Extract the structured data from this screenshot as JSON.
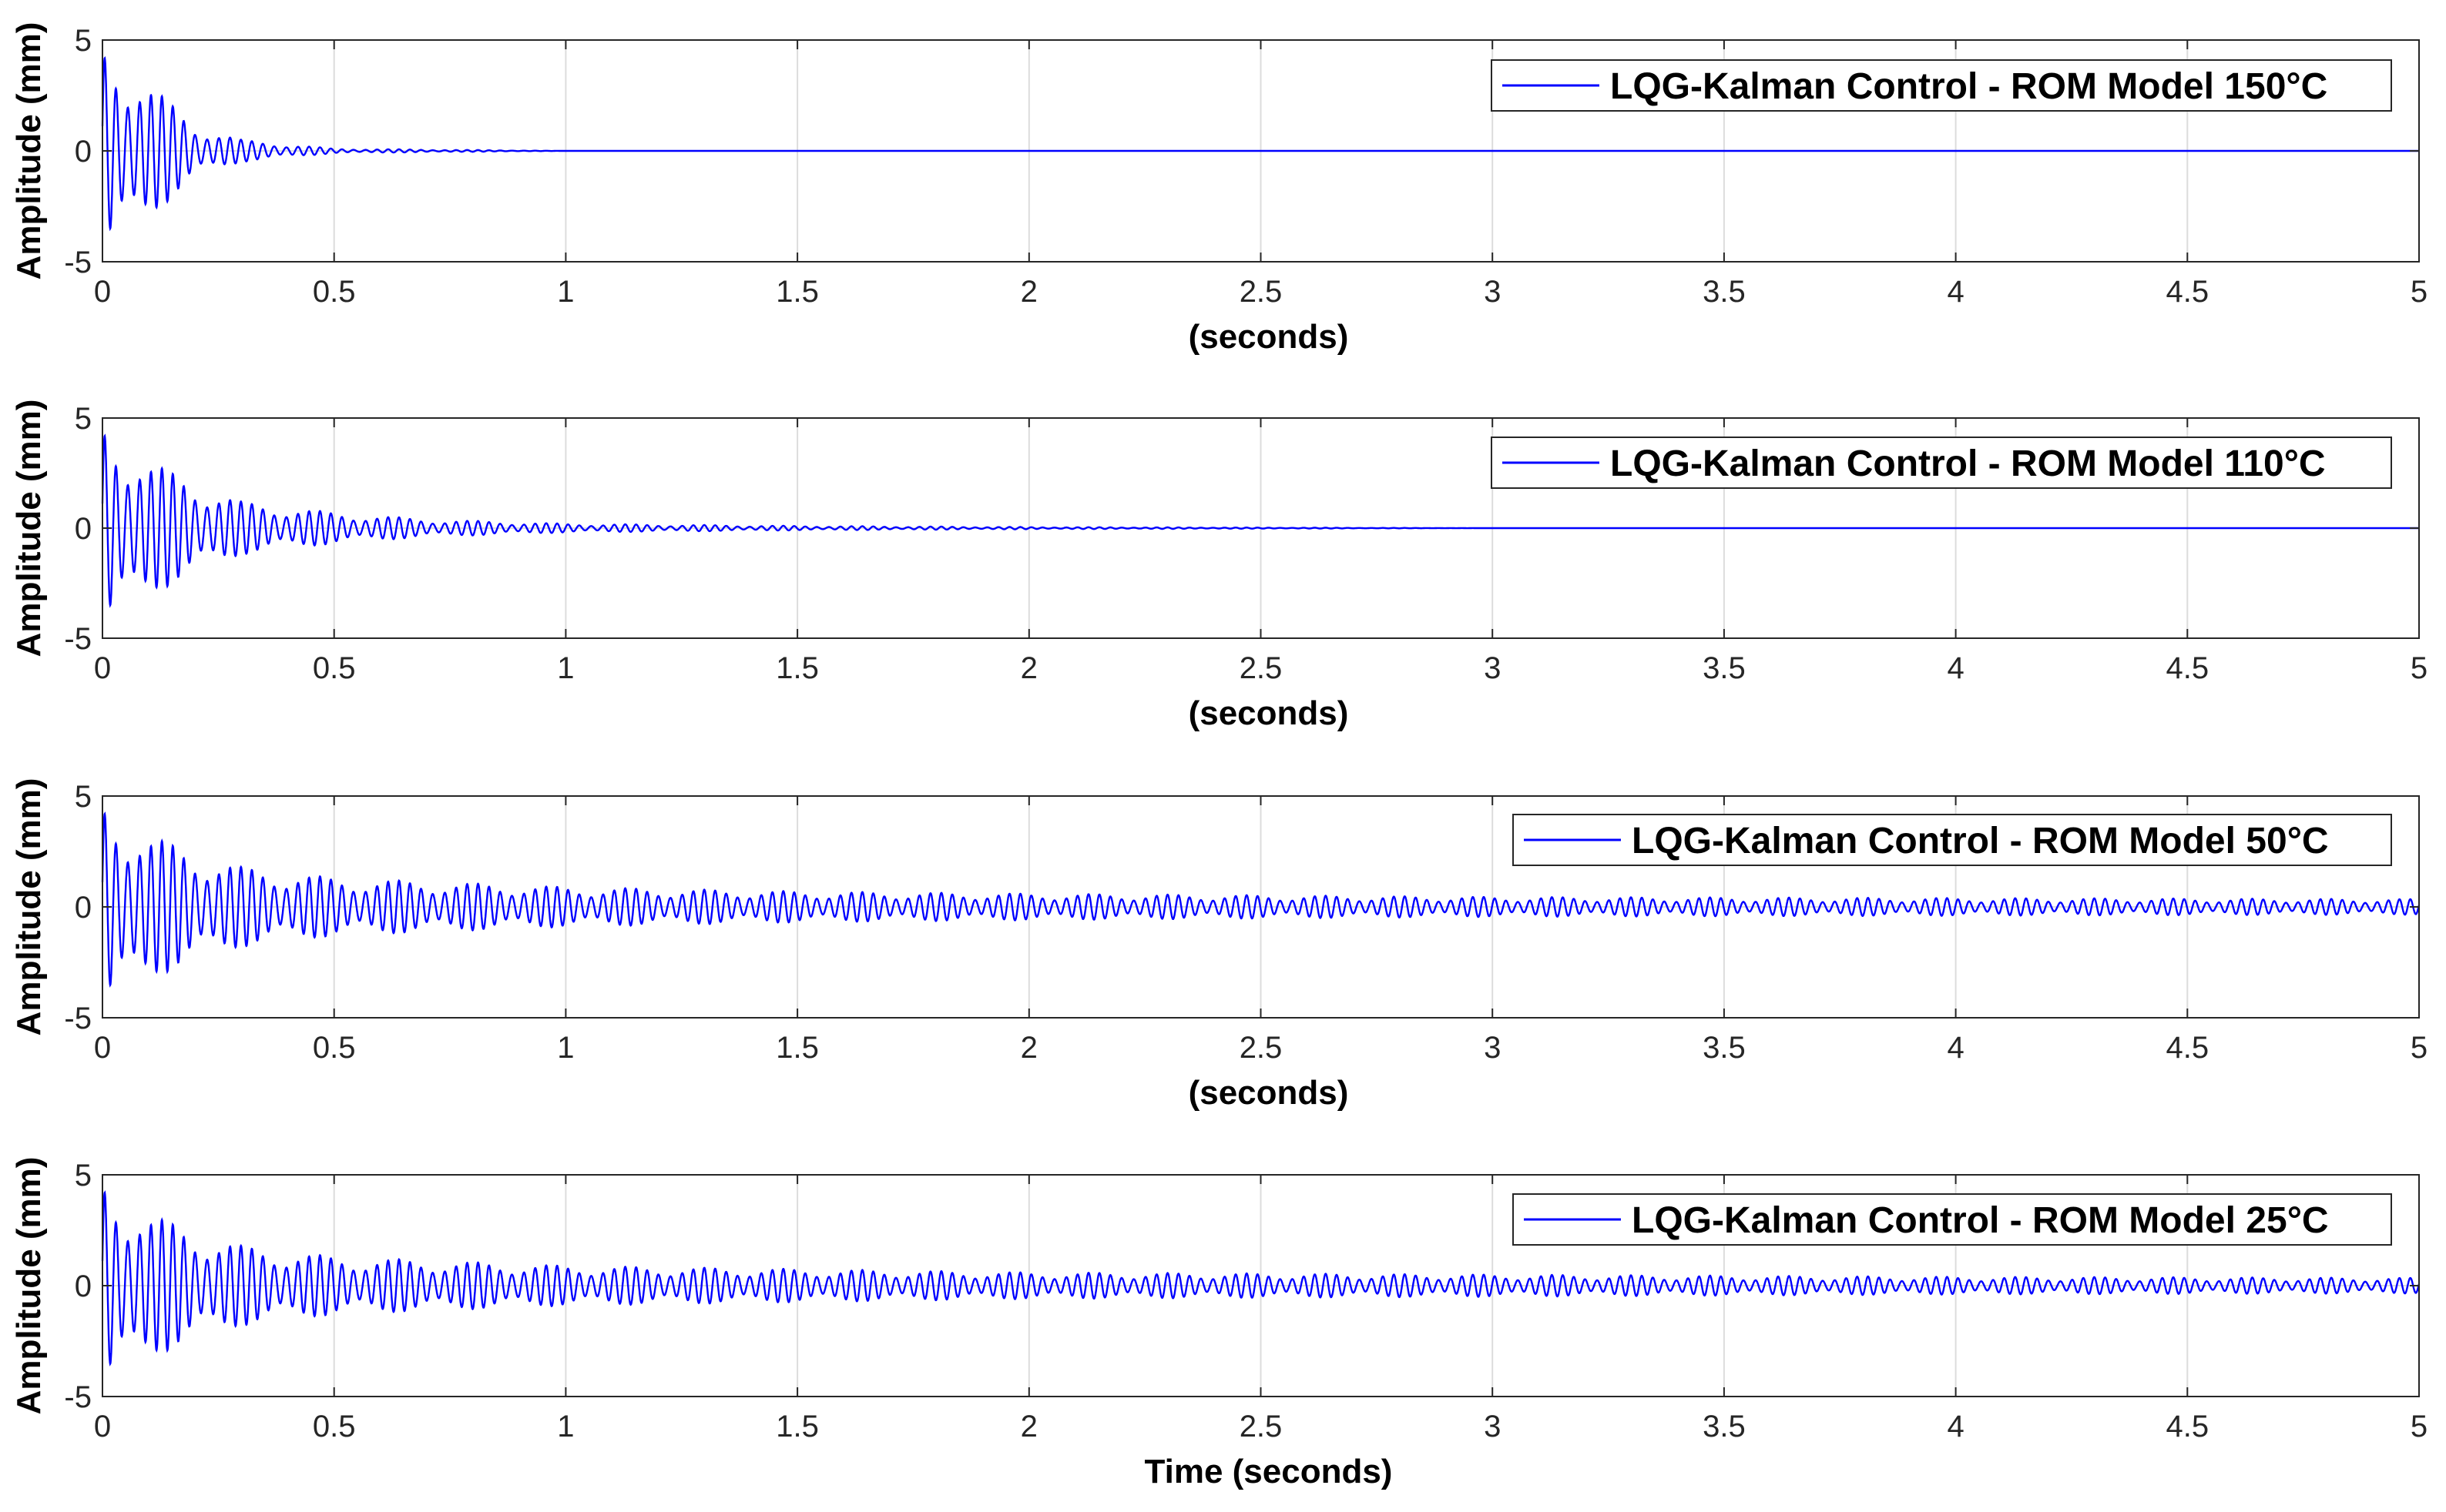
{
  "colors": {
    "series": "#0000ff",
    "axes": "#262626",
    "grid": "#dcdcdc",
    "background": "#ffffff"
  },
  "chart_data": [
    {
      "type": "line",
      "xlabel": "(seconds)",
      "ylabel": "Amplitude (mm)",
      "xlim": [
        0,
        5
      ],
      "ylim": [
        -5,
        5
      ],
      "xticks": [
        "0",
        "0.5",
        "1",
        "1.5",
        "2",
        "2.5",
        "3",
        "3.5",
        "4",
        "4.5",
        "5"
      ],
      "yticks": [
        "5",
        "0",
        "-5"
      ],
      "grid": true,
      "legend_position": "top-right",
      "series": [
        {
          "name": "LQG-Kalman Control - ROM Model 150°C",
          "description": "decaying oscillation",
          "initial_amplitude": 5,
          "envelope": [
            [
              0,
              5
            ],
            [
              0.1,
              3.0
            ],
            [
              0.2,
              1.2
            ],
            [
              0.3,
              0.5
            ],
            [
              0.5,
              0.1
            ],
            [
              1,
              0
            ],
            [
              5,
              0
            ]
          ]
        }
      ]
    },
    {
      "type": "line",
      "xlabel": "(seconds)",
      "ylabel": "Amplitude (mm)",
      "xlim": [
        0,
        5
      ],
      "ylim": [
        -5,
        5
      ],
      "xticks": [
        "0",
        "0.5",
        "1",
        "1.5",
        "2",
        "2.5",
        "3",
        "3.5",
        "4",
        "4.5",
        "5"
      ],
      "yticks": [
        "5",
        "0",
        "-5"
      ],
      "grid": true,
      "legend_position": "top-right",
      "series": [
        {
          "name": "LQG-Kalman Control - ROM Model 110°C",
          "description": "decaying oscillation",
          "initial_amplitude": 5,
          "envelope": [
            [
              0,
              5
            ],
            [
              0.1,
              3.0
            ],
            [
              0.3,
              1.2
            ],
            [
              0.5,
              0.7
            ],
            [
              0.7,
              0.4
            ],
            [
              1,
              0.2
            ],
            [
              1.5,
              0.1
            ],
            [
              2,
              0.05
            ],
            [
              3,
              0
            ],
            [
              5,
              0
            ]
          ]
        }
      ]
    },
    {
      "type": "line",
      "xlabel": "(seconds)",
      "ylabel": "Amplitude (mm)",
      "xlim": [
        0,
        5
      ],
      "ylim": [
        -5,
        5
      ],
      "xticks": [
        "0",
        "0.5",
        "1",
        "1.5",
        "2",
        "2.5",
        "3",
        "3.5",
        "4",
        "4.5",
        "5"
      ],
      "yticks": [
        "5",
        "0",
        "-5"
      ],
      "grid": true,
      "legend_position": "top-right",
      "series": [
        {
          "name": "LQG-Kalman Control - ROM Model 50°C",
          "description": "decaying oscillation",
          "initial_amplitude": 5,
          "envelope": [
            [
              0,
              5
            ],
            [
              0.1,
              3.2
            ],
            [
              0.3,
              1.8
            ],
            [
              0.5,
              1.3
            ],
            [
              1,
              0.9
            ],
            [
              1.5,
              0.7
            ],
            [
              2,
              0.6
            ],
            [
              3,
              0.45
            ],
            [
              4,
              0.4
            ],
            [
              5,
              0.35
            ]
          ]
        }
      ]
    },
    {
      "type": "line",
      "xlabel": "Time (seconds)",
      "ylabel": "Amplitude (mm)",
      "xlim": [
        0,
        5
      ],
      "ylim": [
        -5,
        5
      ],
      "xticks": [
        "0",
        "0.5",
        "1",
        "1.5",
        "2",
        "2.5",
        "3",
        "3.5",
        "4",
        "4.5",
        "5"
      ],
      "yticks": [
        "5",
        "0",
        "-5"
      ],
      "grid": true,
      "legend_position": "top-right",
      "series": [
        {
          "name": "LQG-Kalman Control - ROM Model 25°C",
          "description": "decaying oscillation",
          "initial_amplitude": 5,
          "envelope": [
            [
              0,
              5
            ],
            [
              0.1,
              3.2
            ],
            [
              0.3,
              1.8
            ],
            [
              0.5,
              1.3
            ],
            [
              1,
              0.9
            ],
            [
              1.5,
              0.75
            ],
            [
              2,
              0.6
            ],
            [
              3,
              0.5
            ],
            [
              4,
              0.4
            ],
            [
              5,
              0.35
            ]
          ]
        }
      ]
    }
  ]
}
